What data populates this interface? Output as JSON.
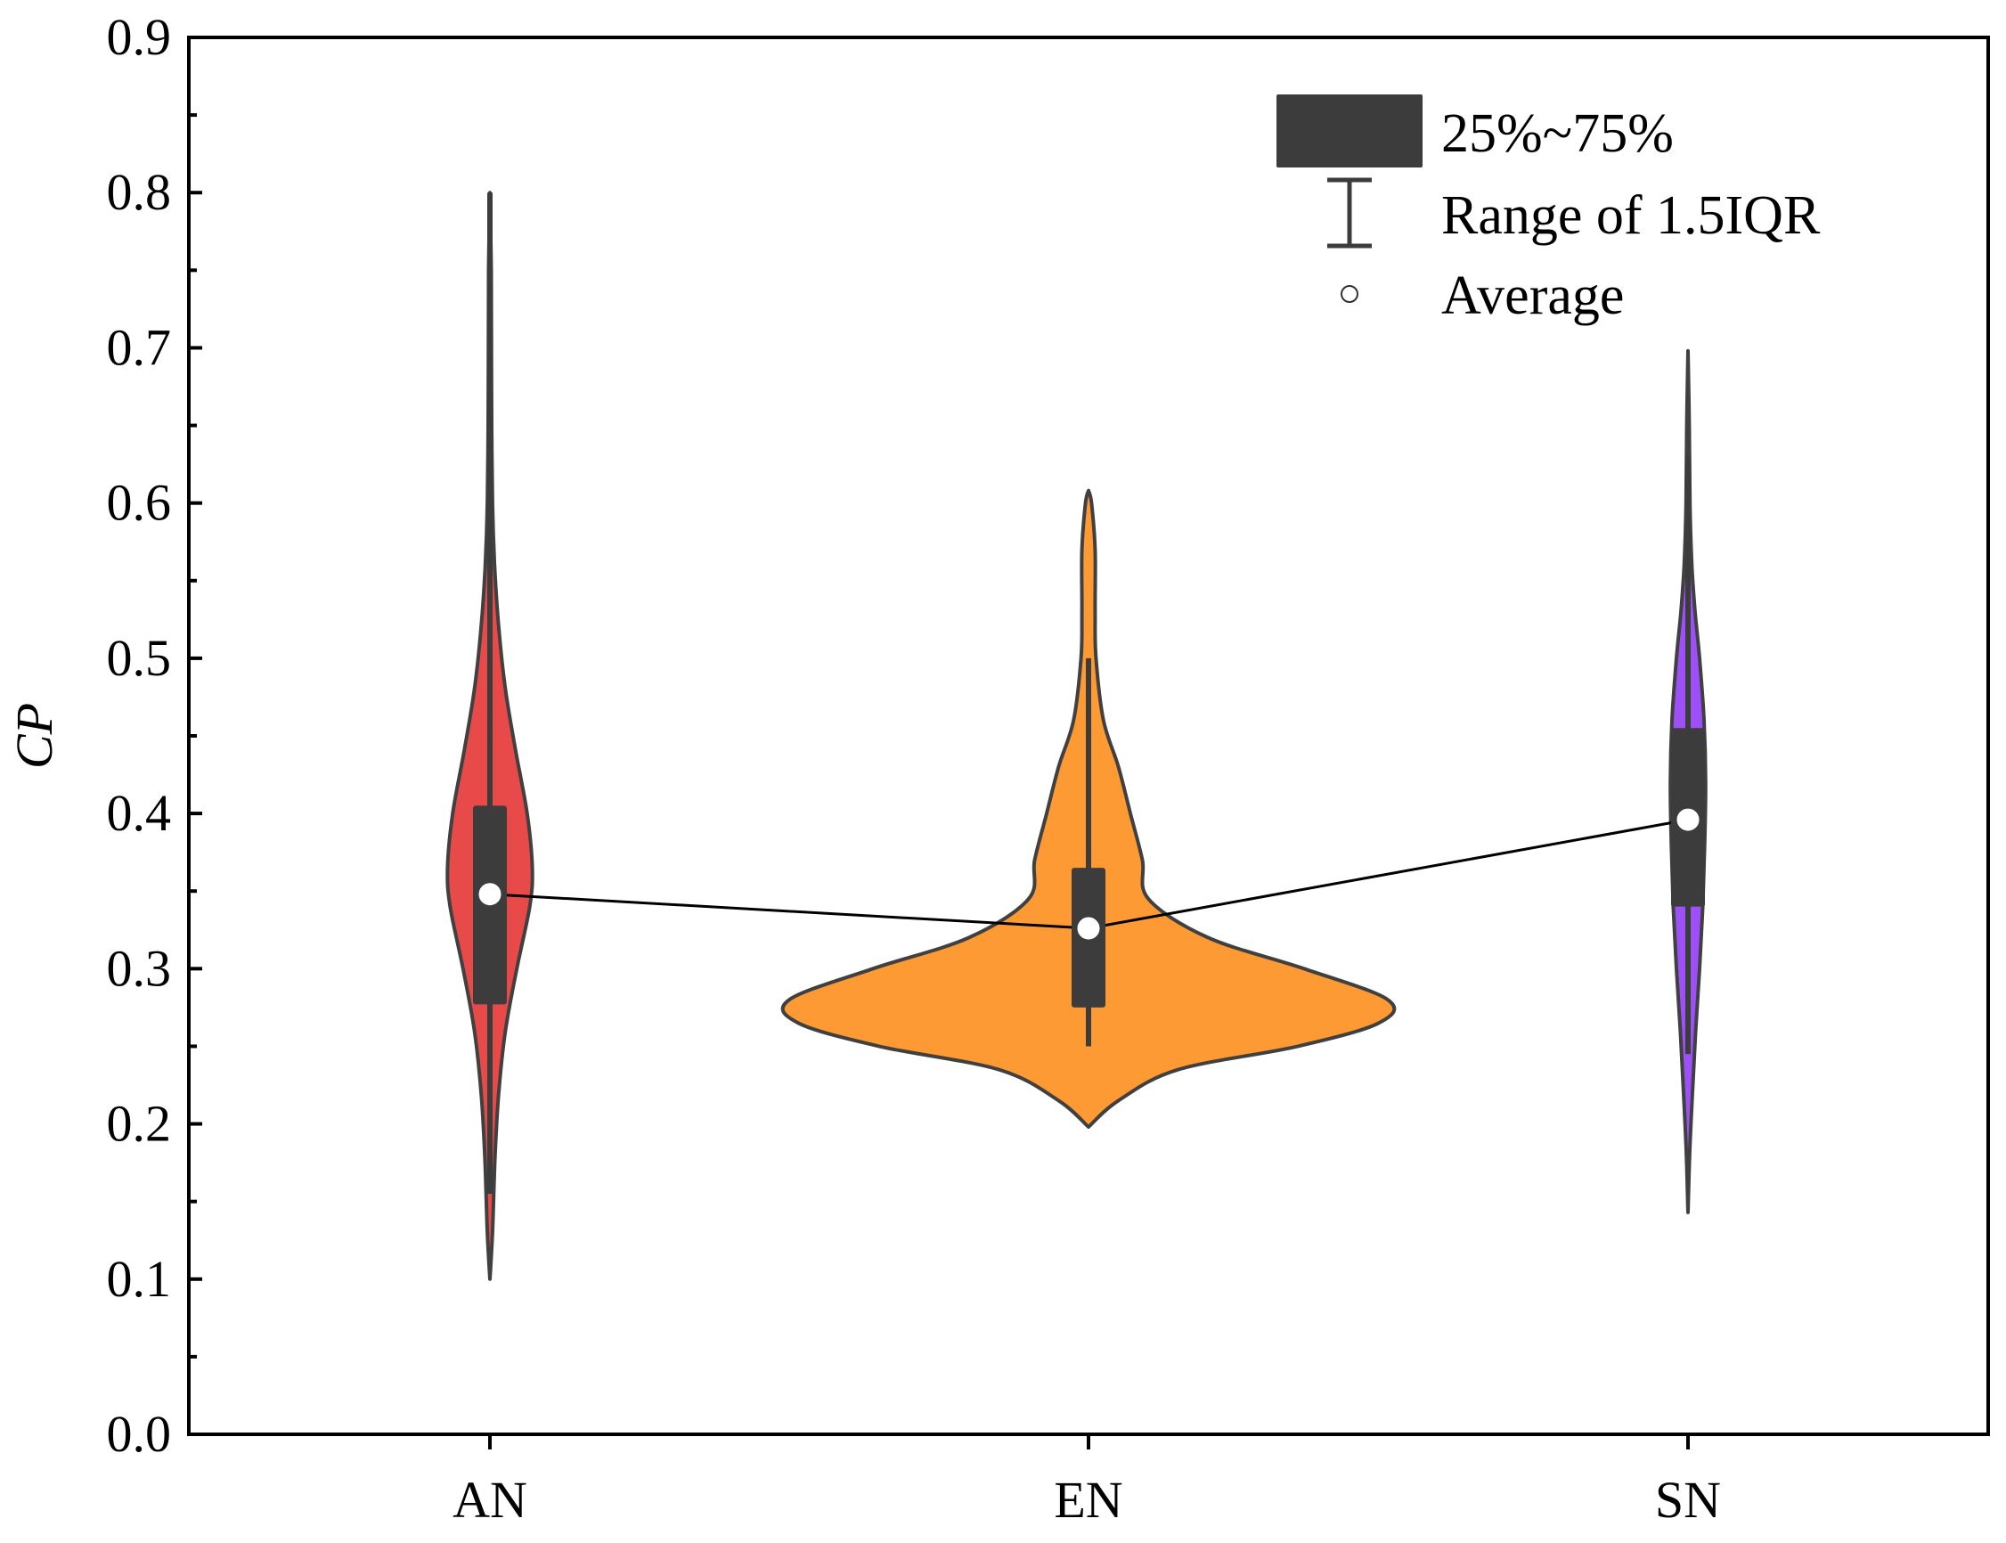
{
  "chart_data": {
    "type": "violin",
    "title": "",
    "xlabel": "",
    "ylabel": "CP",
    "ylim": [
      0.0,
      0.9
    ],
    "yticks": [
      "0.0",
      "0.1",
      "0.2",
      "0.3",
      "0.4",
      "0.5",
      "0.6",
      "0.7",
      "0.8",
      "0.9"
    ],
    "categories": [
      "AN",
      "EN",
      "SN"
    ],
    "series": [
      {
        "name": "AN",
        "color": "#e84a4a",
        "min": 0.1,
        "max": 0.8,
        "q1": 0.277,
        "median": 0.35,
        "q3": 0.405,
        "whisker_low": 0.155,
        "whisker_high": 0.8,
        "mean": 0.348,
        "density": [
          [
            0.1,
            0.0
          ],
          [
            0.13,
            0.05
          ],
          [
            0.18,
            0.1
          ],
          [
            0.22,
            0.17
          ],
          [
            0.26,
            0.3
          ],
          [
            0.3,
            0.52
          ],
          [
            0.34,
            0.77
          ],
          [
            0.365,
            0.82
          ],
          [
            0.4,
            0.72
          ],
          [
            0.44,
            0.5
          ],
          [
            0.48,
            0.3
          ],
          [
            0.52,
            0.17
          ],
          [
            0.56,
            0.09
          ],
          [
            0.6,
            0.05
          ],
          [
            0.65,
            0.035
          ],
          [
            0.7,
            0.03
          ],
          [
            0.75,
            0.025
          ],
          [
            0.8,
            0.0
          ]
        ]
      },
      {
        "name": "EN",
        "color": "#fe9a33",
        "min": 0.198,
        "max": 0.608,
        "q1": 0.275,
        "median": 0.33,
        "q3": 0.365,
        "whisker_low": 0.25,
        "whisker_high": 0.5,
        "mean": 0.326,
        "density": [
          [
            0.198,
            0.0
          ],
          [
            0.215,
            0.1
          ],
          [
            0.235,
            0.3
          ],
          [
            0.25,
            0.7
          ],
          [
            0.265,
            0.97
          ],
          [
            0.28,
            1.0
          ],
          [
            0.3,
            0.72
          ],
          [
            0.32,
            0.4
          ],
          [
            0.345,
            0.2
          ],
          [
            0.37,
            0.18
          ],
          [
            0.4,
            0.14
          ],
          [
            0.43,
            0.1
          ],
          [
            0.46,
            0.05
          ],
          [
            0.5,
            0.025
          ],
          [
            0.53,
            0.022
          ],
          [
            0.57,
            0.022
          ],
          [
            0.6,
            0.01
          ],
          [
            0.608,
            0.0
          ]
        ]
      },
      {
        "name": "SN",
        "color": "#9c50f6",
        "min": 0.143,
        "max": 0.698,
        "q1": 0.34,
        "median": 0.4,
        "q3": 0.455,
        "whisker_low": 0.245,
        "whisker_high": 0.63,
        "mean": 0.396,
        "density": [
          [
            0.143,
            0.0
          ],
          [
            0.18,
            0.05
          ],
          [
            0.22,
            0.14
          ],
          [
            0.26,
            0.24
          ],
          [
            0.3,
            0.36
          ],
          [
            0.34,
            0.46
          ],
          [
            0.38,
            0.52
          ],
          [
            0.42,
            0.55
          ],
          [
            0.46,
            0.5
          ],
          [
            0.5,
            0.36
          ],
          [
            0.53,
            0.22
          ],
          [
            0.56,
            0.12
          ],
          [
            0.6,
            0.06
          ],
          [
            0.65,
            0.04
          ],
          [
            0.698,
            0.0
          ]
        ]
      }
    ],
    "mean_line": [
      0.348,
      0.326,
      0.396
    ],
    "legend": {
      "position": "top-right",
      "entries": [
        {
          "symbol": "box",
          "label": "25%~75%"
        },
        {
          "symbol": "whisker",
          "label": "Range of 1.5IQR"
        },
        {
          "symbol": "mean-marker",
          "label": "Average"
        }
      ]
    },
    "colors": {
      "box": "#3c3c3c",
      "outline": "#404040",
      "mean_marker": "#ffffff",
      "mean_line": "#000000",
      "axis": "#000000"
    }
  }
}
